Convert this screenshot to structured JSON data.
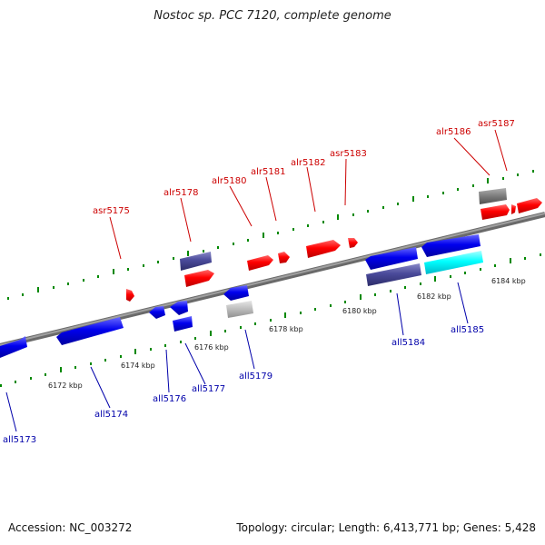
{
  "title": "Nostoc sp. PCC 7120, complete genome",
  "accession": "Accession: NC_003272",
  "summary": "Topology: circular; Length: 6,413,771 bp; Genes: 5,428",
  "colors": {
    "forward": "#ff0000",
    "reverse": "#0000ee",
    "dark": "#4a4a9a",
    "gray": "#808080",
    "lightgray": "#bbbbbb",
    "cyan": "#00ffff",
    "axis": "#808080",
    "tick": "#008800",
    "label_top": "#cc0000",
    "label_bot": "#0000aa"
  },
  "kbp_labels": [
    "6172 kbp",
    "6174 kbp",
    "6176 kbp",
    "6178 kbp",
    "6180 kbp",
    "6182 kbp",
    "6184 kbp"
  ],
  "top_gene_labels": [
    "asr5175",
    "alr5178",
    "alr5180",
    "alr5181",
    "alr5182",
    "asr5183",
    "alr5186",
    "asr5187"
  ],
  "bottom_gene_labels": [
    "all5173",
    "all5174",
    "all5176",
    "all5177",
    "all5179",
    "all5184",
    "all5185"
  ]
}
